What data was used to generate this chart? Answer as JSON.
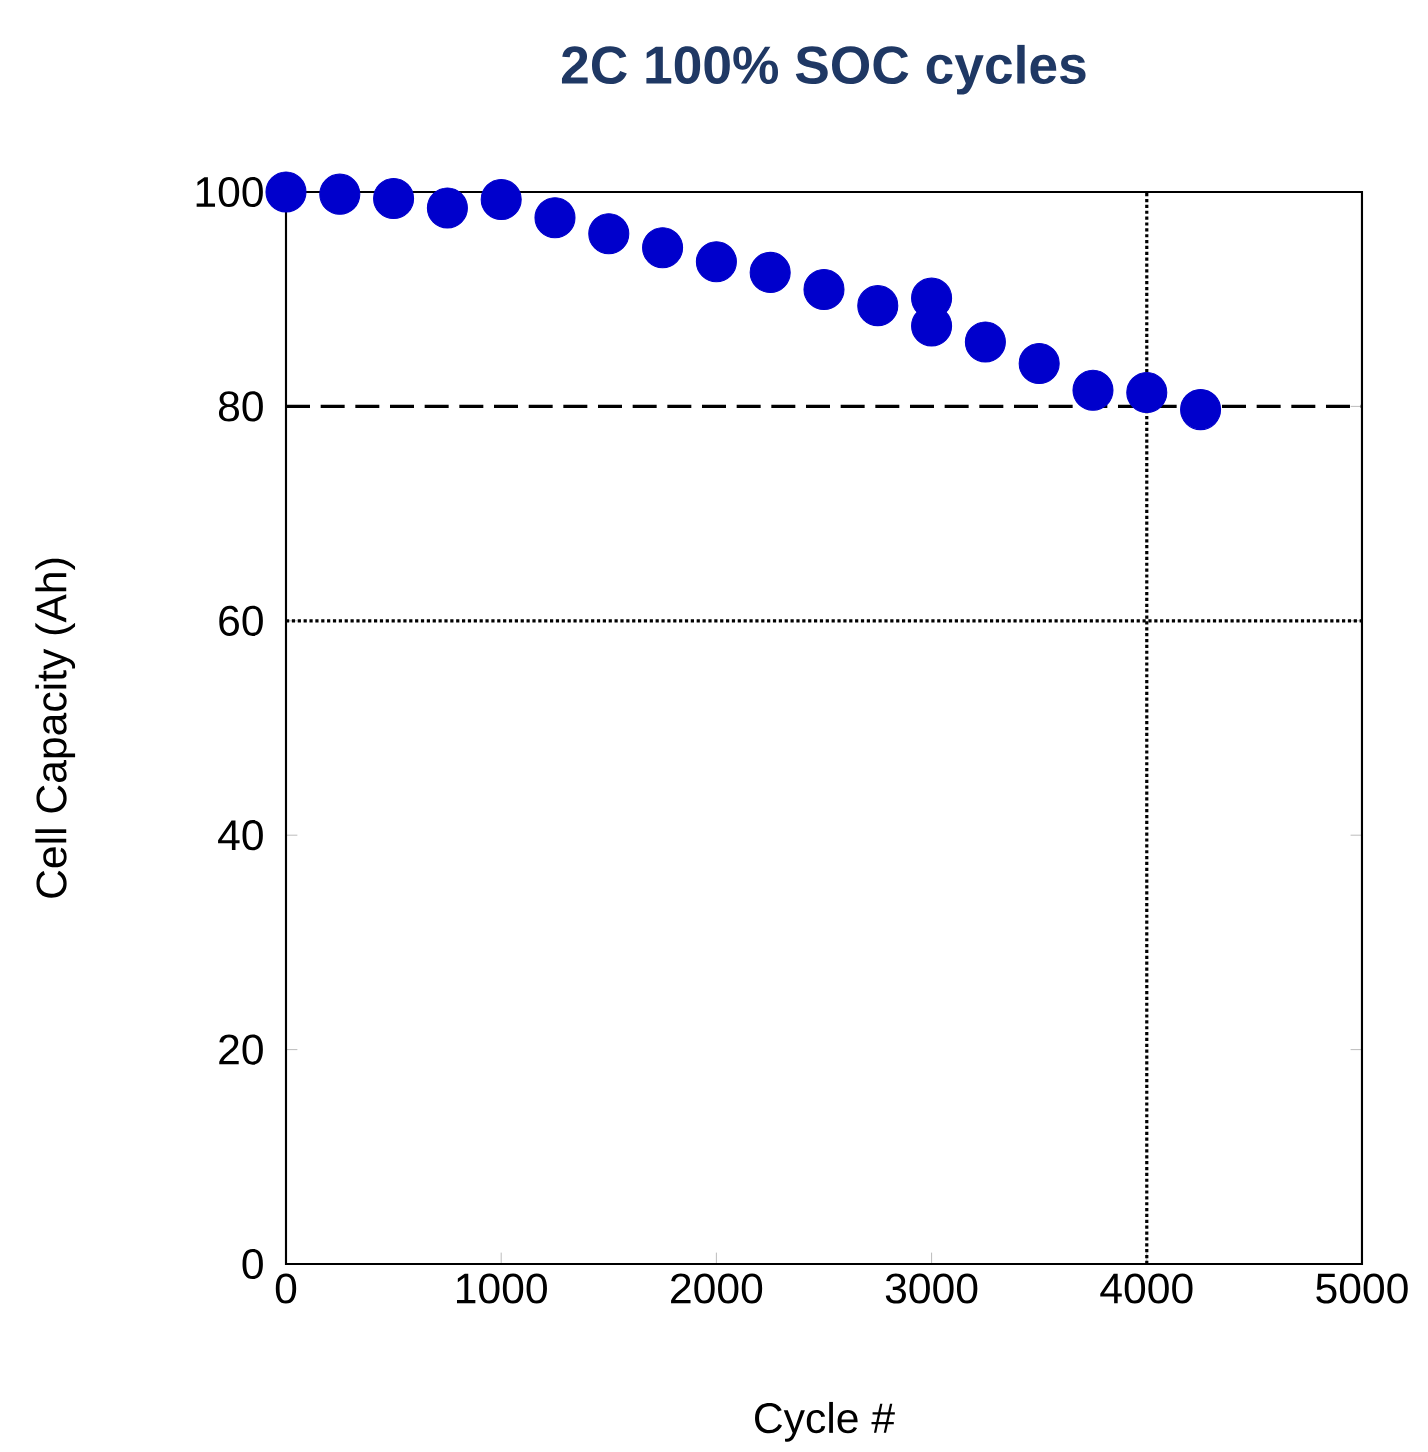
{
  "chart_data": {
    "type": "scatter",
    "title": "2C 100% SOC cycles",
    "xlabel": "Cycle #",
    "ylabel": "Cell Capacity (Ah)",
    "x": [
      0,
      250,
      500,
      750,
      1000,
      1250,
      1500,
      1750,
      2000,
      2250,
      2500,
      2750,
      3000,
      3000,
      3250,
      3500,
      3750,
      4000,
      4250
    ],
    "series": [
      {
        "color": "#0000cc",
        "values": [
          100,
          99.8,
          99.4,
          98.5,
          99.3,
          97.6,
          96.1,
          94.8,
          93.5,
          92.5,
          90.9,
          89.4,
          90.1,
          87.5,
          86.0,
          84.0,
          81.5,
          81.3,
          79.7
        ]
      }
    ],
    "marker": "circle",
    "xlim": [
      0,
      5000
    ],
    "xticks": [
      0,
      1000,
      2000,
      3000,
      4000,
      5000
    ],
    "ylim": [
      0,
      100
    ],
    "yticks": [
      0,
      20,
      40,
      60,
      80,
      100
    ],
    "ref_lines": [
      {
        "axis": "y",
        "value": 80,
        "line_style": "dashed"
      },
      {
        "axis": "y",
        "value": 60,
        "line_style": "dotted"
      },
      {
        "axis": "x",
        "value": 4000,
        "line_style": "dotted"
      }
    ]
  }
}
